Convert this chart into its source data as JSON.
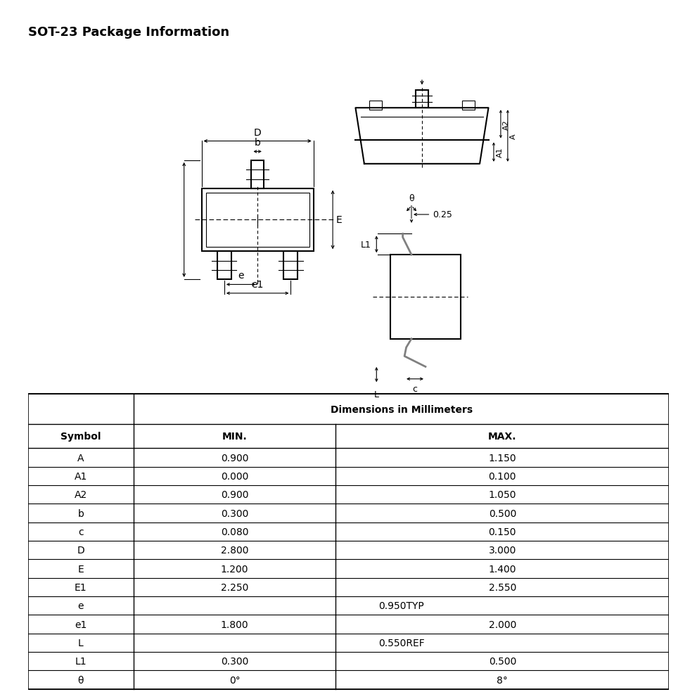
{
  "title": "SOT-23 Package Information",
  "table_dim_header": "Dimensions in Millimeters",
  "table_rows": [
    [
      "A",
      "0.900",
      "1.150"
    ],
    [
      "A1",
      "0.000",
      "0.100"
    ],
    [
      "A2",
      "0.900",
      "1.050"
    ],
    [
      "b",
      "0.300",
      "0.500"
    ],
    [
      "c",
      "0.080",
      "0.150"
    ],
    [
      "D",
      "2.800",
      "3.000"
    ],
    [
      "E",
      "1.200",
      "1.400"
    ],
    [
      "E1",
      "2.250",
      "2.550"
    ],
    [
      "e",
      "",
      "0.950TYP"
    ],
    [
      "e1",
      "1.800",
      "2.000"
    ],
    [
      "L",
      "",
      "0.550REF"
    ],
    [
      "L1",
      "0.300",
      "0.500"
    ],
    [
      "θ",
      "0°",
      "8°"
    ]
  ],
  "bg_color": "#ffffff",
  "line_color": "#000000"
}
